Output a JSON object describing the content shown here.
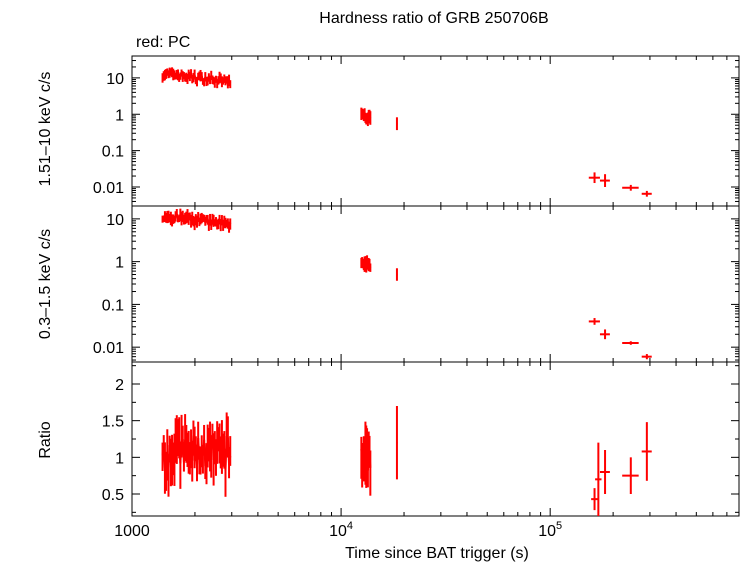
{
  "chart_data": {
    "type": "scatter",
    "title": "Hardness ratio of GRB 250706B",
    "subtitle": "red: PC",
    "xlabel": "Time since BAT trigger (s)",
    "x_scale": "log",
    "xlim": [
      1000,
      800000
    ],
    "x_ticks": [
      {
        "value": 1000,
        "base": "1000",
        "exp": ""
      },
      {
        "value": 10000,
        "base": "10",
        "exp": "4"
      },
      {
        "value": 100000,
        "base": "10",
        "exp": "5"
      }
    ],
    "color": "#ff0000",
    "panels": [
      {
        "id": "hard",
        "ylabel": "1.51–10 keV c/s",
        "y_scale": "log",
        "ylim": [
          0.003,
          40
        ],
        "y_ticks": [
          {
            "value": 10,
            "label": "10"
          },
          {
            "value": 1,
            "label": "1"
          },
          {
            "value": 0.1,
            "label": "0.1"
          },
          {
            "value": 0.01,
            "label": "0.01"
          }
        ],
        "series": [
          {
            "name": "PC",
            "clusters": [
              {
                "x_start": 1400,
                "x_end": 2950,
                "y_start": 13,
                "y_end": 8,
                "y_scatter": 0.17,
                "n": 58,
                "err": 0.12
              },
              {
                "x_start": 12500,
                "x_end": 13800,
                "y_start": 1.0,
                "y_end": 0.75,
                "y_scatter": 0.12,
                "n": 12,
                "err": 0.15
              }
            ],
            "points": [
              {
                "x": 18500,
                "y": 0.55,
                "xerr": 150,
                "yerr_factor": 1.5
              },
              {
                "x": 163000,
                "y": 0.018,
                "xerr": 10000,
                "yerr_factor": 1.4
              },
              {
                "x": 183000,
                "y": 0.015,
                "xerr": 10000,
                "yerr_factor": 1.5
              },
              {
                "x": 243000,
                "y": 0.0095,
                "xerr": 22000,
                "yerr_factor": 1.2
              },
              {
                "x": 290000,
                "y": 0.0065,
                "xerr": 16000,
                "yerr_factor": 1.2
              }
            ]
          }
        ]
      },
      {
        "id": "soft",
        "ylabel": "0.3–1.5 keV c/s",
        "y_scale": "log",
        "ylim": [
          0.0045,
          20
        ],
        "y_ticks": [
          {
            "value": 10,
            "label": "10"
          },
          {
            "value": 1,
            "label": "1"
          },
          {
            "value": 0.1,
            "label": "0.1"
          },
          {
            "value": 0.01,
            "label": "0.01"
          }
        ],
        "series": [
          {
            "name": "PC",
            "clusters": [
              {
                "x_start": 1400,
                "x_end": 2950,
                "y_start": 12,
                "y_end": 7,
                "y_scatter": 0.18,
                "n": 58,
                "err": 0.12
              },
              {
                "x_start": 12500,
                "x_end": 13800,
                "y_start": 0.95,
                "y_end": 0.8,
                "y_scatter": 0.12,
                "n": 12,
                "err": 0.15
              }
            ],
            "points": [
              {
                "x": 18500,
                "y": 0.5,
                "xerr": 150,
                "yerr_factor": 1.4
              },
              {
                "x": 163000,
                "y": 0.04,
                "xerr": 10000,
                "yerr_factor": 1.2
              },
              {
                "x": 183000,
                "y": 0.02,
                "xerr": 10000,
                "yerr_factor": 1.3
              },
              {
                "x": 243000,
                "y": 0.0125,
                "xerr": 22000,
                "yerr_factor": 1.1
              },
              {
                "x": 290000,
                "y": 0.006,
                "xerr": 16000,
                "yerr_factor": 1.15
              }
            ]
          }
        ]
      },
      {
        "id": "ratio",
        "ylabel": "Ratio",
        "y_scale": "linear",
        "ylim": [
          0.2,
          2.3
        ],
        "y_ticks": [
          {
            "value": 2,
            "label": "2"
          },
          {
            "value": 1.5,
            "label": "1.5"
          },
          {
            "value": 1,
            "label": "1"
          },
          {
            "value": 0.5,
            "label": "0.5"
          }
        ],
        "series": [
          {
            "name": "PC",
            "clusters": [
              {
                "x_start": 1400,
                "x_end": 2950,
                "y_start": 1.1,
                "y_end": 1.05,
                "y_scatter_lin": 0.25,
                "n": 58,
                "err_lin": 0.3
              },
              {
                "x_start": 12500,
                "x_end": 13800,
                "y_start": 1.0,
                "y_end": 1.0,
                "y_scatter_lin": 0.2,
                "n": 12,
                "err_lin": 0.35
              }
            ],
            "points": [
              {
                "x": 18500,
                "y": 1.2,
                "xerr": 150,
                "yerr": 0.5
              },
              {
                "x": 163000,
                "y": 0.43,
                "xerr": 6000,
                "yerr": 0.15
              },
              {
                "x": 170000,
                "y": 0.7,
                "xerr": 6000,
                "yerr": 0.5
              },
              {
                "x": 183000,
                "y": 0.8,
                "xerr": 10000,
                "yerr": 0.3
              },
              {
                "x": 243000,
                "y": 0.75,
                "xerr": 22000,
                "yerr": 0.25
              },
              {
                "x": 290000,
                "y": 1.08,
                "xerr": 16000,
                "yerr": 0.4
              }
            ]
          }
        ]
      }
    ]
  }
}
